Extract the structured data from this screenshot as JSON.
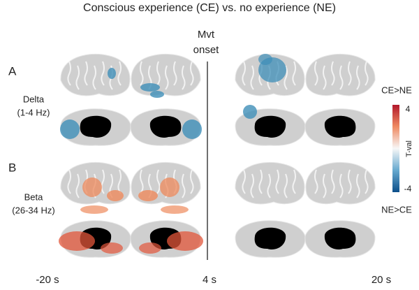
{
  "header": {
    "title": "Conscious experience (CE) vs. no experience (NE)"
  },
  "onset": {
    "lines": [
      "Mvt",
      "onset"
    ]
  },
  "panels": [
    {
      "label": "A",
      "band": "Delta",
      "range": "(1-4 Hz)"
    },
    {
      "label": "B",
      "band": "Beta",
      "range": "(26-34 Hz)"
    }
  ],
  "colorbar": {
    "top_label": "CE>NE",
    "max": 4,
    "label": "T-val",
    "min": -4,
    "bottom_label": "NE>CE"
  },
  "time_labels": [
    "-20 s",
    "4 s",
    "20 s"
  ]
}
